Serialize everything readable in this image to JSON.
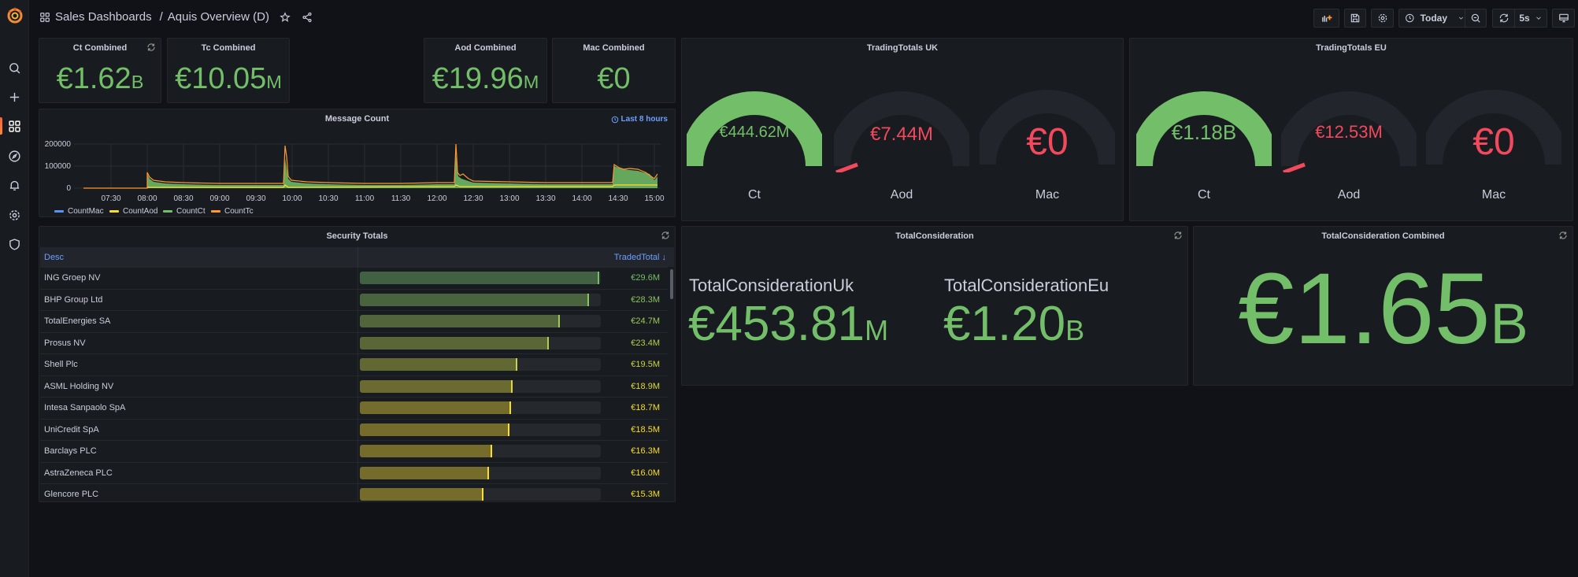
{
  "nav": {
    "breadcrumb_folder": "Sales Dashboards",
    "breadcrumb_separator": "/",
    "dashboard_title": "Aquis Overview (D)",
    "sidebar_items": [
      {
        "name": "search",
        "icon": "search-icon"
      },
      {
        "name": "create",
        "icon": "plus-icon"
      },
      {
        "name": "dashboards",
        "icon": "dashboards-icon",
        "active": true
      },
      {
        "name": "explore",
        "icon": "compass-icon"
      },
      {
        "name": "alerting",
        "icon": "bell-icon"
      },
      {
        "name": "configuration",
        "icon": "gear-icon"
      },
      {
        "name": "server-admin",
        "icon": "shield-icon"
      }
    ]
  },
  "toolbar": {
    "add_panel_icon": "add-panel-icon",
    "save_icon": "save-icon",
    "settings_icon": "gear-icon",
    "time_range": "Today",
    "refresh_interval": "5s",
    "zoom_out_icon": "zoom-out-icon",
    "refresh_icon": "refresh-icon",
    "tv_mode_icon": "monitor-icon"
  },
  "colors": {
    "green": "#73bf69",
    "red": "#f2495c",
    "yellow": "#fade2a",
    "orange": "#ff9830",
    "blue_link": "#6e9fff",
    "panel_bg": "#181b1f",
    "page_bg": "#111217"
  },
  "stats": [
    {
      "title": "Ct Combined",
      "value": "€1.62",
      "unit": "B"
    },
    {
      "title": "Tc Combined",
      "value": "€10.05",
      "unit": "M"
    },
    {
      "title": "Aod Combined",
      "value": "€19.96",
      "unit": "M"
    },
    {
      "title": "Mac Combined",
      "value": "€0",
      "unit": ""
    }
  ],
  "message_count": {
    "title": "Message Count",
    "time_override": "Last 8 hours"
  },
  "chart_data": {
    "type": "area",
    "title": "Message Count",
    "xlabel": "",
    "ylabel": "",
    "x": [
      "07:00",
      "07:30",
      "08:00",
      "08:30",
      "09:00",
      "09:30",
      "10:00",
      "10:08",
      "10:30",
      "11:00",
      "11:30",
      "12:00",
      "12:30",
      "12:42",
      "13:00",
      "13:30",
      "14:00",
      "14:30",
      "14:45",
      "15:00"
    ],
    "x_ticks": [
      "07:30",
      "08:00",
      "08:30",
      "09:00",
      "09:30",
      "10:00",
      "10:30",
      "11:00",
      "11:30",
      "12:00",
      "12:30",
      "13:00",
      "13:30",
      "14:00",
      "14:30",
      "15:00"
    ],
    "y_ticks": [
      "0",
      "100000",
      "200000"
    ],
    "ylim": [
      0,
      200000
    ],
    "stacked": true,
    "grid": true,
    "legend_position": "bottom",
    "series": [
      {
        "name": "CountMac",
        "color": "#5794f2",
        "values": [
          0,
          0,
          0,
          0,
          0,
          0,
          0,
          0,
          0,
          0,
          0,
          0,
          0,
          0,
          0,
          0,
          0,
          0,
          0,
          0
        ]
      },
      {
        "name": "CountAod",
        "color": "#fade2a",
        "values": [
          0,
          0,
          3000,
          3000,
          3000,
          3000,
          3000,
          8000,
          3000,
          3000,
          3000,
          3000,
          4000,
          6000,
          4000,
          4000,
          4000,
          8000,
          8000,
          6000
        ]
      },
      {
        "name": "CountCt",
        "color": "#73bf69",
        "values": [
          0,
          0,
          45000,
          20000,
          15000,
          12000,
          13000,
          110000,
          18000,
          15000,
          12000,
          12000,
          15000,
          130000,
          20000,
          18000,
          15000,
          75000,
          65000,
          40000
        ]
      },
      {
        "name": "CountTc",
        "color": "#ff9830",
        "values": [
          0,
          0,
          8000,
          3000,
          2000,
          2000,
          2000,
          20000,
          3000,
          2000,
          2000,
          2000,
          3000,
          22000,
          3000,
          3000,
          2000,
          8000,
          7000,
          5000
        ]
      }
    ]
  },
  "trading_uk": {
    "title": "TradingTotals UK",
    "gauges": [
      {
        "label": "Ct",
        "value": "€444.62M",
        "color": "#73bf69",
        "fill": 1.0
      },
      {
        "label": "Aod",
        "value": "€7.44M",
        "color": "#f2495c",
        "fill": 0.05
      },
      {
        "label": "Mac",
        "value": "€0",
        "color": "#f2495c",
        "fill": 0.0
      }
    ]
  },
  "trading_eu": {
    "title": "TradingTotals EU",
    "gauges": [
      {
        "label": "Ct",
        "value": "€1.18B",
        "color": "#73bf69",
        "fill": 1.0
      },
      {
        "label": "Aod",
        "value": "€12.53M",
        "color": "#f2495c",
        "fill": 0.05
      },
      {
        "label": "Mac",
        "value": "€0",
        "color": "#f2495c",
        "fill": 0.0
      }
    ]
  },
  "security_totals": {
    "title": "Security Totals",
    "columns": {
      "desc": "Desc",
      "traded_total": "TradedTotal"
    },
    "sort_indicator": "↓",
    "rows": [
      {
        "desc": "ING Groep NV",
        "value": "€29.6M",
        "pct": 1.0
      },
      {
        "desc": "BHP Group Ltd",
        "value": "€28.3M",
        "pct": 0.956
      },
      {
        "desc": "TotalEnergies SA",
        "value": "€24.7M",
        "pct": 0.834
      },
      {
        "desc": "Prosus NV",
        "value": "€23.4M",
        "pct": 0.79
      },
      {
        "desc": "Shell Plc",
        "value": "€19.5M",
        "pct": 0.659
      },
      {
        "desc": "ASML Holding NV",
        "value": "€18.9M",
        "pct": 0.638
      },
      {
        "desc": "Intesa Sanpaolo SpA",
        "value": "€18.7M",
        "pct": 0.632
      },
      {
        "desc": "UniCredit SpA",
        "value": "€18.5M",
        "pct": 0.625
      },
      {
        "desc": "Barclays PLC",
        "value": "€16.3M",
        "pct": 0.551
      },
      {
        "desc": "AstraZeneca PLC",
        "value": "€16.0M",
        "pct": 0.541
      },
      {
        "desc": "Glencore PLC",
        "value": "€15.3M",
        "pct": 0.517
      }
    ]
  },
  "total_consideration": {
    "title": "TotalConsideration",
    "items": [
      {
        "label": "TotalConsiderationUk",
        "value": "€453.81",
        "unit": "M"
      },
      {
        "label": "TotalConsiderationEu",
        "value": "€1.20",
        "unit": "B"
      }
    ]
  },
  "total_consideration_combined": {
    "title": "TotalConsideration Combined",
    "value": "€1.65",
    "unit": "B"
  }
}
